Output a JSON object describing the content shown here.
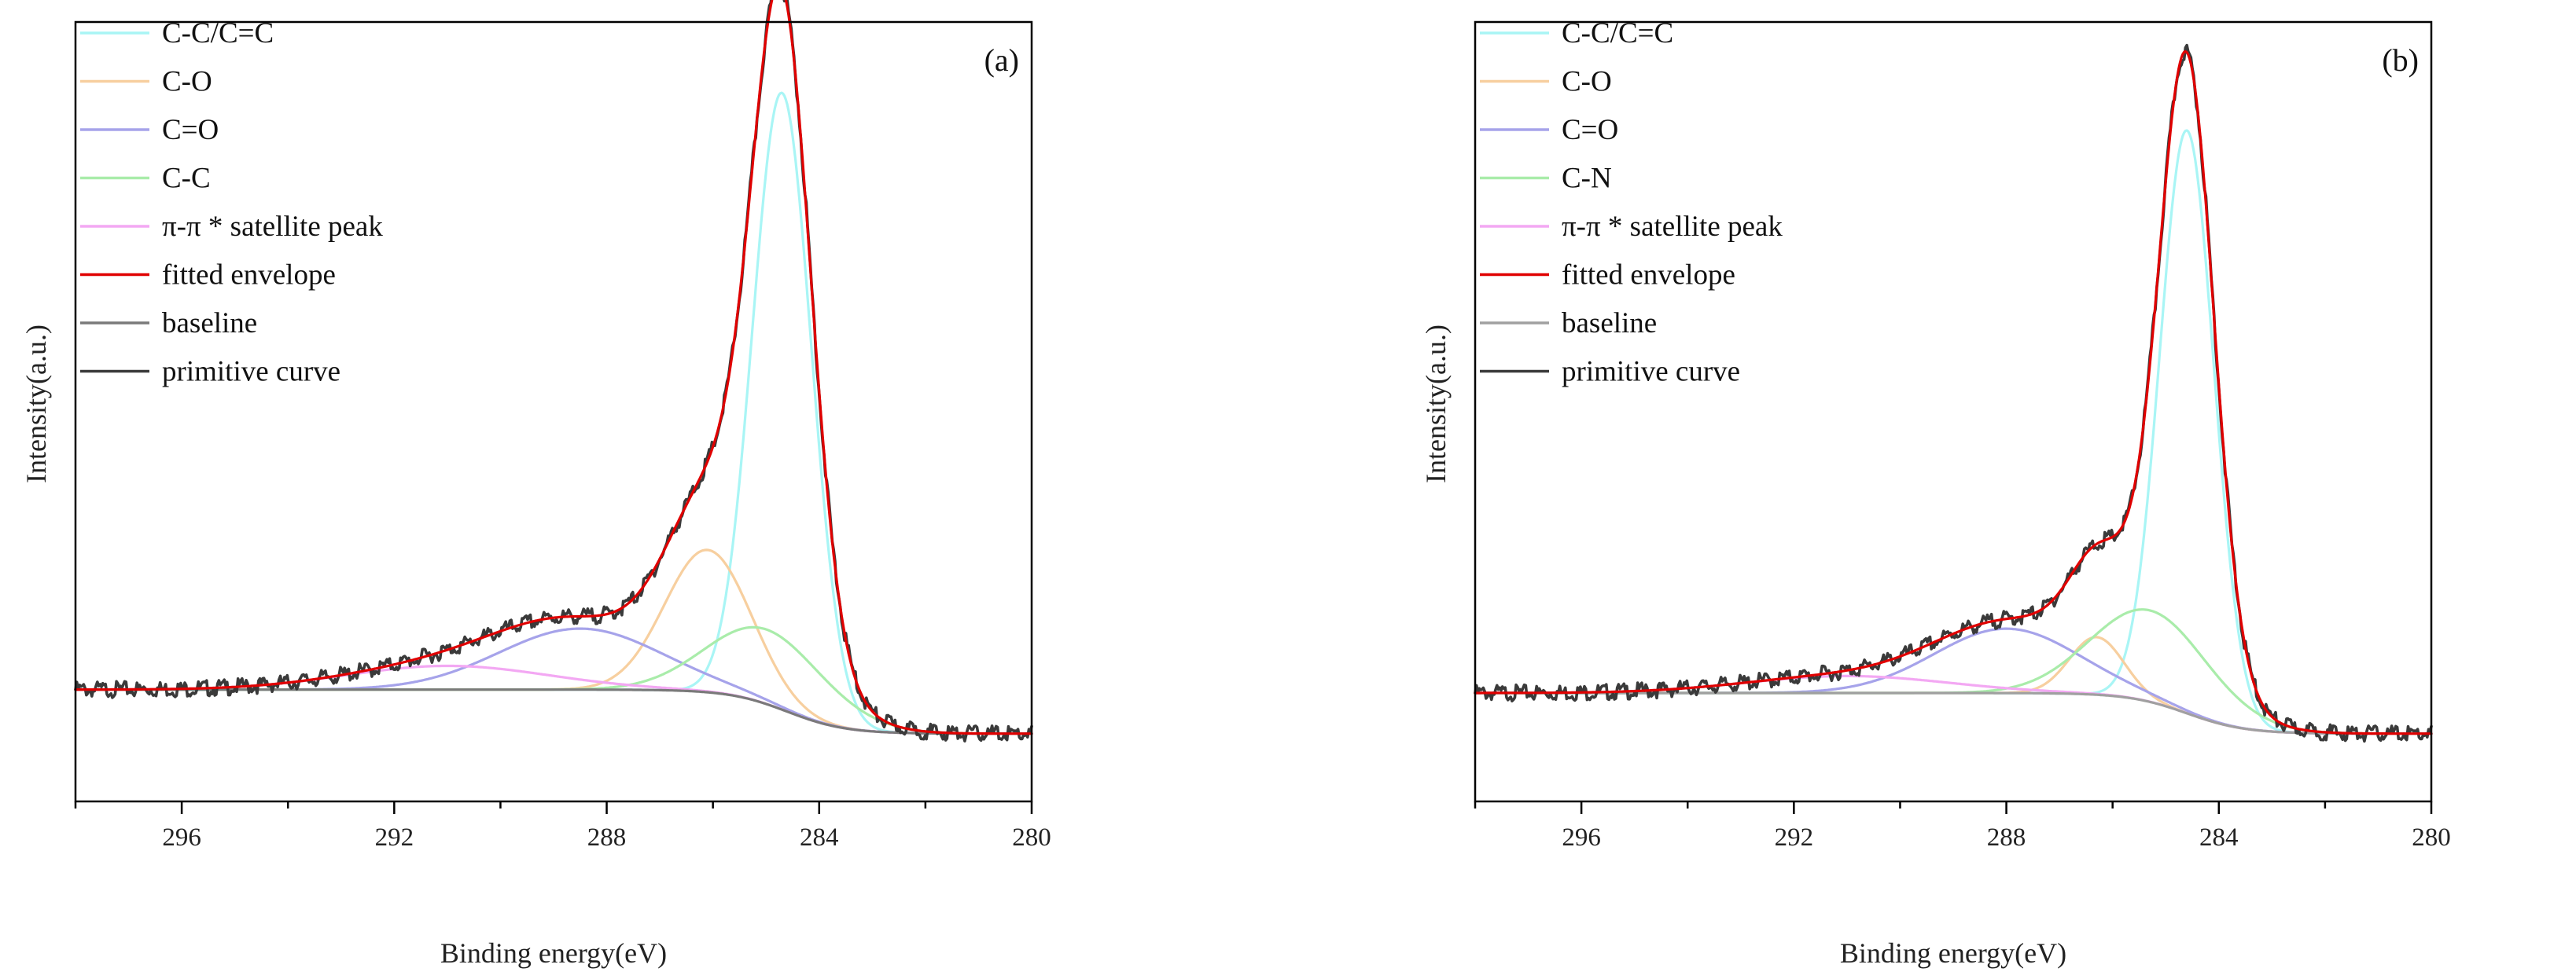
{
  "chart_data": [
    {
      "type": "line",
      "panel_label": "(a)",
      "xlabel": "Binding energy(eV)",
      "ylabel": "Intensity(a.u.)",
      "xlim": [
        298,
        280
      ],
      "ylim": [
        -0.1,
        1.05
      ],
      "x_ticks": [
        296,
        292,
        288,
        284,
        280
      ],
      "x_tick_labels": [
        "296",
        "292",
        "288",
        "284",
        "280"
      ],
      "legend_position": "top-left",
      "peaks": [
        {
          "name": "C-C/C=C",
          "center": 284.7,
          "height": 0.91,
          "fwhm": 1.3,
          "color": "#a9f5f5"
        },
        {
          "name": "C-O",
          "center": 286.1,
          "height": 0.21,
          "fwhm": 1.9,
          "color": "#f7cf9f"
        },
        {
          "name": "C=O",
          "center": 288.5,
          "height": 0.09,
          "fwhm": 3.6,
          "color": "#a6a3ea"
        },
        {
          "name": "C-C",
          "center": 285.0,
          "height": 0.11,
          "fwhm": 2.6,
          "color": "#a9ecaa"
        },
        {
          "name": "π-π * satellite peak",
          "center": 291.0,
          "height": 0.035,
          "fwhm": 4.5,
          "color": "#f3a8f3"
        }
      ],
      "baseline": {
        "high_be_level": 0.065,
        "low_be_level": 0.0,
        "step_center": 284.6,
        "step_width": 0.55
      },
      "series": [
        {
          "name": "C-C/C=C",
          "color": "#a9f5f5"
        },
        {
          "name": "C-O",
          "color": "#f7cf9f"
        },
        {
          "name": "C=O",
          "color": "#a6a3ea"
        },
        {
          "name": "C-C",
          "color": "#a9ecaa"
        },
        {
          "name": "π-π * satellite peak",
          "color": "#f3a8f3"
        },
        {
          "name": "fitted envelope",
          "color": "#e00000"
        },
        {
          "name": "baseline",
          "color": "#7a7a7a"
        },
        {
          "name": "primitive curve",
          "color": "#3a3a3a"
        }
      ]
    },
    {
      "type": "line",
      "panel_label": "(b)",
      "xlabel": "Binding energy(eV)",
      "ylabel": "Intensity(a.u.)",
      "xlim": [
        298,
        280
      ],
      "ylim": [
        -0.1,
        1.05
      ],
      "x_ticks": [
        296,
        292,
        288,
        284,
        280
      ],
      "x_tick_labels": [
        "296",
        "292",
        "288",
        "284",
        "280"
      ],
      "legend_position": "top-left",
      "peaks": [
        {
          "name": "C-C/C=C",
          "center": 284.6,
          "height": 0.86,
          "fwhm": 1.2,
          "color": "#a9f5f5"
        },
        {
          "name": "C-O",
          "center": 286.3,
          "height": 0.085,
          "fwhm": 1.2,
          "color": "#f7cf9f"
        },
        {
          "name": "C=O",
          "center": 288.0,
          "height": 0.095,
          "fwhm": 3.2,
          "color": "#a6a3ea"
        },
        {
          "name": "C-N",
          "center": 285.3,
          "height": 0.135,
          "fwhm": 2.6,
          "color": "#a9ecaa"
        },
        {
          "name": "π-π * satellite peak",
          "center": 291.0,
          "height": 0.025,
          "fwhm": 4.5,
          "color": "#f3a8f3"
        }
      ],
      "baseline": {
        "high_be_level": 0.06,
        "low_be_level": 0.0,
        "step_center": 284.6,
        "step_width": 0.55
      },
      "series": [
        {
          "name": "C-C/C=C",
          "color": "#a9f5f5"
        },
        {
          "name": "C-O",
          "color": "#f7cf9f"
        },
        {
          "name": "C=O",
          "color": "#a6a3ea"
        },
        {
          "name": "C-N",
          "color": "#a9ecaa"
        },
        {
          "name": "π-π * satellite peak",
          "color": "#f3a8f3"
        },
        {
          "name": "fitted envelope",
          "color": "#e00000"
        },
        {
          "name": "baseline",
          "color": "#a0a0a0"
        },
        {
          "name": "primitive curve",
          "color": "#3a3a3a"
        }
      ]
    }
  ]
}
